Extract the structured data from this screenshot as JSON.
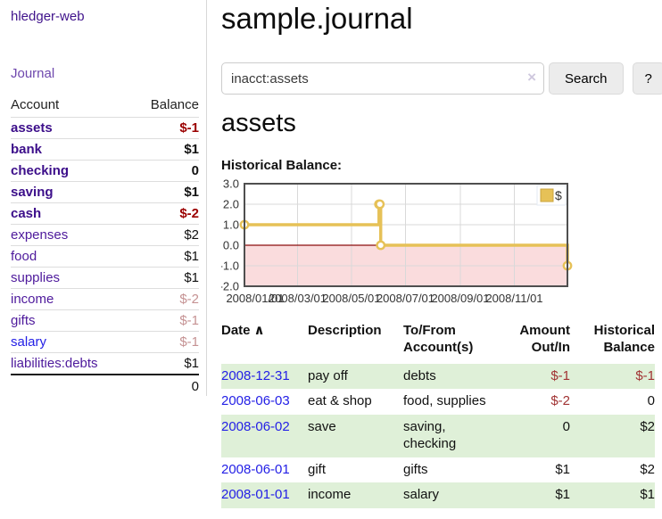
{
  "sidebar": {
    "app_title": "hledger-web",
    "journal_link": "Journal",
    "table_headers": {
      "account": "Account",
      "balance": "Balance"
    },
    "accounts": [
      {
        "name": "assets",
        "balance": "$-1"
      },
      {
        "name": "bank",
        "balance": "$1"
      },
      {
        "name": "checking",
        "balance": "0"
      },
      {
        "name": "saving",
        "balance": "$1"
      },
      {
        "name": "cash",
        "balance": "$-2"
      },
      {
        "name": "expenses",
        "balance": "$2"
      },
      {
        "name": "food",
        "balance": "$1"
      },
      {
        "name": "supplies",
        "balance": "$1"
      },
      {
        "name": "income",
        "balance": "$-2"
      },
      {
        "name": "gifts",
        "balance": "$-1"
      },
      {
        "name": "salary",
        "balance": "$-1"
      },
      {
        "name": "liabilities:debts",
        "balance": "$1"
      }
    ],
    "total": "0"
  },
  "main": {
    "title": "sample.journal",
    "search": {
      "value": "inacct:assets",
      "clear_icon": "×",
      "button_label": "Search",
      "help_label": "?"
    },
    "account_heading": "assets",
    "chart_title": "Historical Balance:"
  },
  "chart_data": {
    "type": "line",
    "step": true,
    "title": "Historical Balance:",
    "series": [
      {
        "name": "$",
        "color": "#e6c157",
        "points": [
          [
            "2008-01-01",
            1
          ],
          [
            "2008-06-01",
            2
          ],
          [
            "2008-06-02",
            2
          ],
          [
            "2008-06-03",
            0
          ],
          [
            "2008-12-31",
            -1
          ]
        ]
      }
    ],
    "x_range": [
      "2008-01-01",
      "2008-12-31"
    ],
    "x_ticks": [
      {
        "date": "2008-01-01",
        "label": "2008/01/01"
      },
      {
        "date": "2008-03-01",
        "label": "2008/03/01"
      },
      {
        "date": "2008-05-01",
        "label": "2008/05/01"
      },
      {
        "date": "2008-07-01",
        "label": "2008/07/01"
      },
      {
        "date": "2008-09-01",
        "label": "2008/09/01"
      },
      {
        "date": "2008-11-01",
        "label": "2008/11/01"
      }
    ],
    "y_ticks": [
      3,
      2,
      1,
      0,
      -1,
      -2
    ],
    "ylim": [
      -2,
      3
    ],
    "grid": true,
    "legend": {
      "label": "$",
      "position": "top-right"
    },
    "colors": {
      "negative_area": "#fadcdd",
      "zero_line": "#8c0d0d",
      "grid": "#d9d9d9",
      "border": "#4f4f4f",
      "tick_text": "#333333"
    }
  },
  "register": {
    "headers": [
      "Date",
      "Description",
      "To/From Account(s)",
      "Amount Out/In",
      "Historical Balance"
    ],
    "sort_icon": "∧",
    "rows": [
      {
        "date": "2008-12-31",
        "description": "pay off",
        "accounts": "debts",
        "amount": "$-1",
        "balance": "$-1"
      },
      {
        "date": "2008-06-03",
        "description": "eat & shop",
        "accounts": "food, supplies",
        "amount": "$-2",
        "balance": "0"
      },
      {
        "date": "2008-06-02",
        "description": "save",
        "accounts": "saving, checking",
        "amount": "0",
        "balance": "$2"
      },
      {
        "date": "2008-06-01",
        "description": "gift",
        "accounts": "gifts",
        "amount": "$1",
        "balance": "$2"
      },
      {
        "date": "2008-01-01",
        "description": "income",
        "accounts": "salary",
        "amount": "$1",
        "balance": "$1"
      }
    ]
  }
}
